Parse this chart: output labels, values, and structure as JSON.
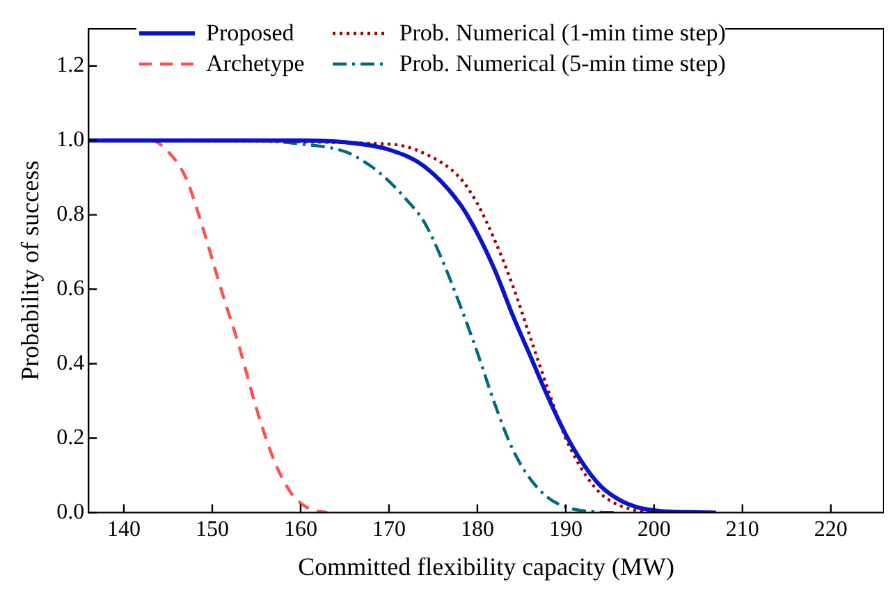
{
  "chart_data": {
    "type": "line",
    "xlabel": "Committed flexibility capacity (MW)",
    "ylabel": "Probability of success",
    "xlim": [
      136,
      226
    ],
    "ylim": [
      0,
      1.3
    ],
    "xticks": [
      140,
      150,
      160,
      170,
      180,
      190,
      200,
      210,
      220
    ],
    "yticks": [
      {
        "value": 0,
        "label": "0.0"
      },
      {
        "value": 0.2,
        "label": "0.2"
      },
      {
        "value": 0.4,
        "label": "0.4"
      },
      {
        "value": 0.6,
        "label": "0.6"
      },
      {
        "value": 0.8,
        "label": "0.8"
      },
      {
        "value": 1,
        "label": "1.0"
      },
      {
        "value": 1.2,
        "label": "1.2"
      }
    ],
    "grid": false,
    "legend": "top",
    "marker": "none",
    "series": [
      {
        "name": "Proposed",
        "color": "#0a14c8",
        "line_style": "solid",
        "x": [
          136,
          150,
          160,
          165,
          170,
          174,
          178,
          180,
          182,
          184,
          186,
          188,
          190,
          192,
          194,
          196,
          198,
          200,
          202,
          204,
          207
        ],
        "values": [
          1,
          1,
          1,
          0.995,
          0.975,
          0.93,
          0.83,
          0.75,
          0.65,
          0.53,
          0.42,
          0.31,
          0.21,
          0.13,
          0.07,
          0.035,
          0.015,
          0.006,
          0.002,
          0.001,
          0
        ]
      },
      {
        "name": "Archetype",
        "color": "#ff5050",
        "line_style": "dashed",
        "x": [
          136,
          143,
          145,
          147,
          149,
          151,
          153,
          155,
          157,
          159,
          161,
          163
        ],
        "values": [
          1,
          1,
          0.97,
          0.9,
          0.76,
          0.6,
          0.45,
          0.28,
          0.14,
          0.05,
          0.01,
          0
        ]
      },
      {
        "name": "Prob. Numerical (1-min time step)",
        "color": "#a00000",
        "line_style": "dotted",
        "x": [
          136,
          170,
          174,
          178,
          180,
          182,
          184,
          186,
          188,
          190,
          192,
          194,
          196,
          198,
          200,
          202
        ],
        "values": [
          1,
          0.99,
          0.965,
          0.9,
          0.83,
          0.73,
          0.61,
          0.47,
          0.33,
          0.2,
          0.11,
          0.05,
          0.02,
          0.006,
          0.001,
          0
        ]
      },
      {
        "name": "Prob. Numerical (5-min time step)",
        "color": "#006a7a",
        "line_style": "dashdot",
        "x": [
          136,
          155,
          160,
          165,
          168,
          170,
          172,
          174,
          176,
          178,
          180,
          182,
          184,
          186,
          188,
          190,
          192,
          194,
          196
        ],
        "values": [
          1,
          1,
          0.99,
          0.97,
          0.93,
          0.89,
          0.84,
          0.78,
          0.68,
          0.56,
          0.43,
          0.29,
          0.17,
          0.09,
          0.04,
          0.015,
          0.005,
          0.001,
          0
        ]
      }
    ]
  }
}
